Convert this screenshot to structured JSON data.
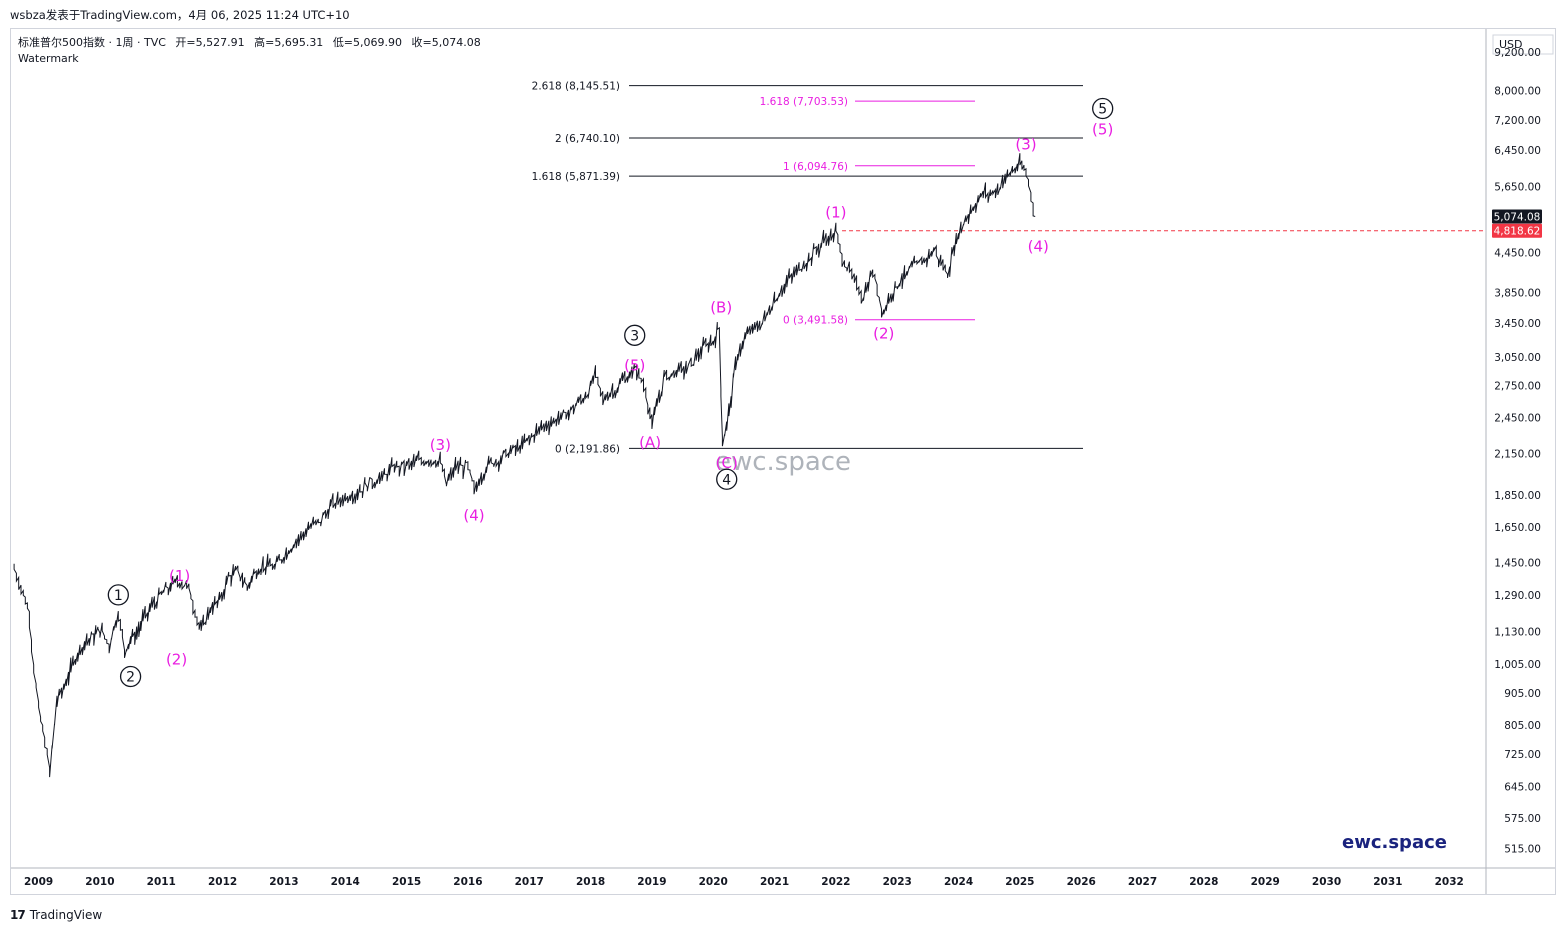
{
  "header": {
    "credit": "wsbza发表于TradingView.com，4月 06, 2025 11:24 UTC+10"
  },
  "legend": {
    "symbol": "标准普尔500指数 · 1周 · TVC",
    "open": "开=5,527.91",
    "high": "高=5,695.31",
    "low": "低=5,069.90",
    "close": "收=5,074.08",
    "watermark_label": "Watermark"
  },
  "footer": {
    "logo": "17",
    "brand": "TradingView"
  },
  "watermark_text": "ewc.space",
  "brand_text": "ewc.space",
  "colors": {
    "price": "#131722",
    "wave_minor": "#e91ee1",
    "fib_primary": "#131722",
    "fib_secondary": "#e91ee1",
    "price_tag": "#131722",
    "alert_tag": "#f23645"
  },
  "chart_data": {
    "type": "line",
    "title": "",
    "currency": "USD",
    "yscale": "log",
    "ylim": [
      480,
      10000
    ],
    "xlim": [
      2008.55,
      2032.6
    ],
    "x_ticks": [
      "2009",
      "2010",
      "2011",
      "2012",
      "2013",
      "2014",
      "2015",
      "2016",
      "2017",
      "2018",
      "2019",
      "2020",
      "2021",
      "2022",
      "2023",
      "2024",
      "2025",
      "2026",
      "2027",
      "2028",
      "2029",
      "2030",
      "2031",
      "2032"
    ],
    "y_ticks": [
      "9,200.00",
      "8,000.00",
      "7,200.00",
      "6,450.00",
      "5,650.00",
      "4,450.00",
      "3,850.00",
      "3,450.00",
      "3,050.00",
      "2,750.00",
      "2,450.00",
      "2,150.00",
      "1,850.00",
      "1,650.00",
      "1,450.00",
      "1,290.00",
      "1,130.00",
      "1,005.00",
      "905.00",
      "805.00",
      "725.00",
      "645.00",
      "575.00",
      "515.00"
    ],
    "price_tags": [
      {
        "label": "5,074.08",
        "value": 5074.08,
        "kind": "price"
      },
      {
        "label": "4,818.62",
        "value": 4818.62,
        "kind": "alert"
      }
    ],
    "series": [
      {
        "x": [
          2008.6,
          2008.75,
          2008.85,
          2008.92,
          2009.0,
          2009.1,
          2009.18,
          2009.3,
          2009.45,
          2009.6,
          2009.75,
          2009.9,
          2010.0,
          2010.15,
          2010.3,
          2010.4,
          2010.5,
          2010.6,
          2010.7,
          2010.85,
          2011.0,
          2011.15,
          2011.3,
          2011.45,
          2011.55,
          2011.65,
          2011.8,
          2011.95,
          2012.1,
          2012.25,
          2012.4,
          2012.55,
          2012.7,
          2012.85,
          2013.0,
          2013.2,
          2013.4,
          2013.6,
          2013.8,
          2014.0,
          2014.2,
          2014.4,
          2014.6,
          2014.8,
          2015.0,
          2015.2,
          2015.4,
          2015.55,
          2015.65,
          2015.8,
          2016.0,
          2016.1,
          2016.3,
          2016.5,
          2016.7,
          2016.85,
          2017.0,
          2017.2,
          2017.4,
          2017.6,
          2017.8,
          2018.0,
          2018.08,
          2018.2,
          2018.4,
          2018.6,
          2018.75,
          2018.9,
          2019.0,
          2019.2,
          2019.4,
          2019.6,
          2019.8,
          2020.0,
          2020.1,
          2020.15,
          2020.22,
          2020.4,
          2020.6,
          2020.8,
          2021.0,
          2021.2,
          2021.4,
          2021.6,
          2021.8,
          2022.0,
          2022.1,
          2022.3,
          2022.45,
          2022.6,
          2022.78,
          2022.9,
          2023.0,
          2023.2,
          2023.4,
          2023.6,
          2023.82,
          2024.0,
          2024.2,
          2024.4,
          2024.6,
          2024.8,
          2025.0,
          2025.1,
          2025.18,
          2025.25
        ],
        "values": [
          1420,
          1300,
          1200,
          1000,
          850,
          760,
          680,
          880,
          940,
          1030,
          1090,
          1110,
          1140,
          1080,
          1210,
          1060,
          1100,
          1120,
          1180,
          1240,
          1290,
          1330,
          1360,
          1320,
          1220,
          1130,
          1230,
          1260,
          1380,
          1400,
          1330,
          1410,
          1440,
          1420,
          1490,
          1570,
          1640,
          1690,
          1790,
          1840,
          1870,
          1940,
          1970,
          2050,
          2060,
          2090,
          2110,
          2080,
          1920,
          2050,
          2050,
          1880,
          2060,
          2110,
          2170,
          2200,
          2270,
          2370,
          2420,
          2480,
          2580,
          2720,
          2870,
          2620,
          2720,
          2840,
          2920,
          2700,
          2380,
          2830,
          2900,
          2940,
          3120,
          3240,
          3380,
          2240,
          2380,
          3100,
          3350,
          3450,
          3750,
          4000,
          4200,
          4400,
          4650,
          4780,
          4400,
          4000,
          3800,
          4150,
          3580,
          3850,
          3970,
          4170,
          4300,
          4500,
          4120,
          4800,
          5200,
          5500,
          5550,
          5900,
          6100,
          5950,
          5550,
          5074
        ]
      }
    ],
    "fib_levels": [
      {
        "label": "2.618 (8,145.51)",
        "value": 8145.51,
        "group": "primary"
      },
      {
        "label": "2 (6,740.10)",
        "value": 6740.1,
        "group": "primary"
      },
      {
        "label": "1.618 (5,871.39)",
        "value": 5871.39,
        "group": "primary"
      },
      {
        "label": "0 (2,191.86)",
        "value": 2191.86,
        "group": "primary"
      },
      {
        "label": "1.618 (7,703.53)",
        "value": 7703.53,
        "group": "secondary"
      },
      {
        "label": "1 (6,094.76)",
        "value": 6094.76,
        "group": "secondary"
      },
      {
        "label": "0 (3,491.58)",
        "value": 3491.58,
        "group": "secondary"
      }
    ],
    "annotations": [
      {
        "text": "1",
        "style": "circle",
        "x": 2010.3,
        "y": 1290
      },
      {
        "text": "2",
        "style": "circle",
        "x": 2010.5,
        "y": 960
      },
      {
        "text": "3",
        "style": "circle",
        "x": 2018.72,
        "y": 3300
      },
      {
        "text": "4",
        "style": "circle",
        "x": 2020.22,
        "y": 1960
      },
      {
        "text": "5",
        "style": "circle",
        "x": 2026.35,
        "y": 7500
      },
      {
        "text": "(1)",
        "style": "paren",
        "x": 2011.3,
        "y": 1380
      },
      {
        "text": "(2)",
        "style": "paren",
        "x": 2011.25,
        "y": 1020
      },
      {
        "text": "(3)",
        "style": "paren",
        "x": 2015.55,
        "y": 2220
      },
      {
        "text": "(4)",
        "style": "paren",
        "x": 2016.1,
        "y": 1720
      },
      {
        "text": "(5)",
        "style": "paren",
        "x": 2018.72,
        "y": 2960
      },
      {
        "text": "(A)",
        "style": "paren",
        "x": 2018.97,
        "y": 2240
      },
      {
        "text": "(B)",
        "style": "paren",
        "x": 2020.13,
        "y": 3650
      },
      {
        "text": "(C)",
        "style": "paren",
        "x": 2020.22,
        "y": 2080
      },
      {
        "text": "(1)",
        "style": "paren",
        "x": 2022.0,
        "y": 5150
      },
      {
        "text": "(2)",
        "style": "paren",
        "x": 2022.78,
        "y": 3320
      },
      {
        "text": "(3)",
        "style": "paren",
        "x": 2025.1,
        "y": 6580
      },
      {
        "text": "(4)",
        "style": "paren",
        "x": 2025.3,
        "y": 4550
      },
      {
        "text": "(5)",
        "style": "paren",
        "x": 2026.35,
        "y": 6950
      }
    ]
  }
}
